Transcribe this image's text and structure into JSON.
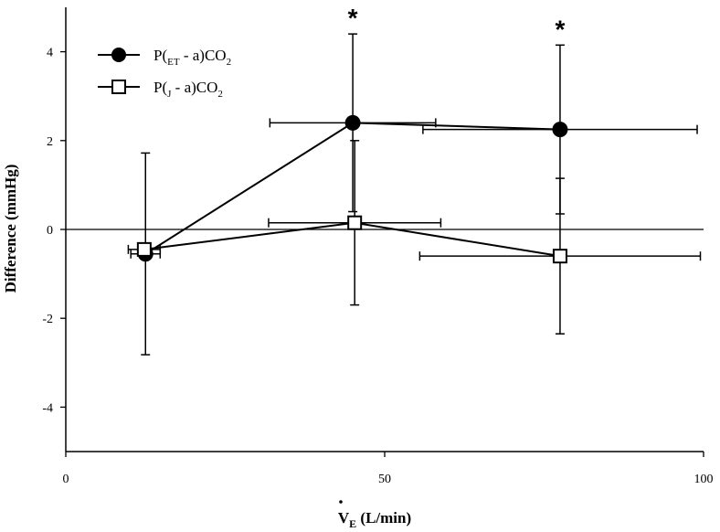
{
  "chart_data": {
    "type": "line",
    "title": "",
    "xlabel": {
      "main": "V",
      "sub": "E",
      "rest": " (L/min)"
    },
    "ylabel": "Difference (mmHg)",
    "xlim": [
      0,
      100
    ],
    "ylim": [
      -5,
      5
    ],
    "x_ticks": [
      0,
      50,
      100
    ],
    "x_tick_labels": [
      "0",
      "50",
      "100"
    ],
    "y_ticks": [
      4,
      2,
      0,
      -2,
      -4
    ],
    "y_tick_labels": [
      "4",
      "2",
      "0",
      "-2",
      "-4"
    ],
    "grid": false,
    "reference_line": 0,
    "legend_position": "top-left",
    "series": [
      {
        "name": {
          "pre": "P(",
          "sub": "ET",
          "mid": " - a)CO",
          "sub2": "2"
        },
        "marker": "filled-circle",
        "color": "#000000",
        "points": [
          {
            "x": 12.5,
            "y": -0.55,
            "y_err": 2.27,
            "x_err": 2.3
          },
          {
            "x": 45.0,
            "y": 2.4,
            "y_err": 2.0,
            "x_err": 13.0
          },
          {
            "x": 77.5,
            "y": 2.25,
            "y_err": 1.9,
            "x_err": 21.5
          }
        ]
      },
      {
        "name": {
          "pre": "P(",
          "sub": "J",
          "mid": " - a)CO",
          "sub2": "2"
        },
        "marker": "open-square",
        "color": "#000000",
        "points": [
          {
            "x": 12.3,
            "y": -0.45,
            "y_err": 0.0,
            "x_err": 2.5
          },
          {
            "x": 45.3,
            "y": 0.15,
            "y_err": 1.85,
            "x_err": 13.5
          },
          {
            "x": 77.5,
            "y": -0.6,
            "y_err": 1.75,
            "x_err": 22.0
          }
        ]
      }
    ],
    "annotations": [
      {
        "text": "*",
        "x": 45.0,
        "y": 4.4
      },
      {
        "text": "*",
        "x": 77.5,
        "y": 4.15
      }
    ]
  }
}
